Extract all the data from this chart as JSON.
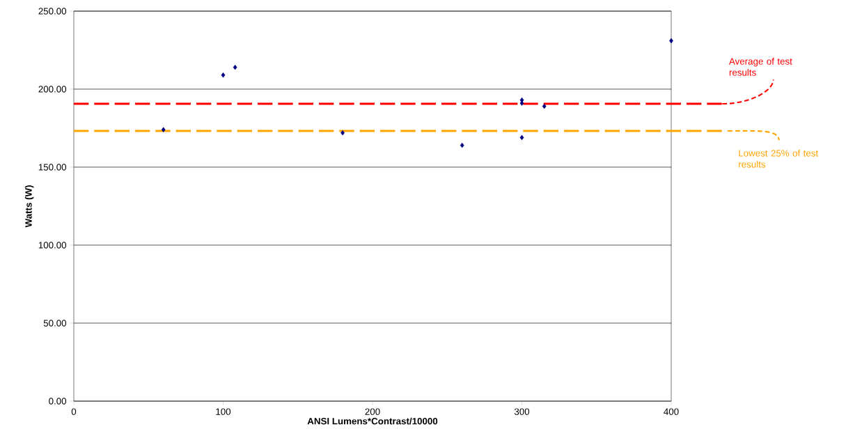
{
  "chart_data": {
    "type": "scatter",
    "xlabel": "ANSI Lumens*Contrast/10000",
    "ylabel": "Watts (W)",
    "x": [
      60,
      100,
      108,
      180,
      260,
      300,
      300,
      300,
      315,
      400
    ],
    "series": [
      {
        "color": "#000080",
        "values": [
          174,
          209,
          214,
          172,
          164,
          193,
          191,
          169,
          189,
          231
        ]
      }
    ],
    "marker": "diamond",
    "xlim": [
      0,
      400
    ],
    "ylim": [
      0,
      250
    ],
    "xticks": [
      0,
      100,
      200,
      300,
      400
    ],
    "yticks": [
      {
        "value": 0,
        "label": "0.00"
      },
      {
        "value": 50,
        "label": "50.00"
      },
      {
        "value": 100,
        "label": "100.00"
      },
      {
        "value": 150,
        "label": "150.00"
      },
      {
        "value": 200,
        "label": "200.00"
      },
      {
        "value": 250,
        "label": "250.00"
      }
    ],
    "grid": "y",
    "ref_lines": [
      {
        "axis": "y",
        "value": 190.6,
        "label": "Average of test results",
        "color": "#ff0000",
        "line_style": "dashed"
      },
      {
        "axis": "y",
        "value": 173.2,
        "label": "Lowest 25% of test results",
        "color": "#ffa500",
        "line_style": "dashed"
      }
    ]
  }
}
